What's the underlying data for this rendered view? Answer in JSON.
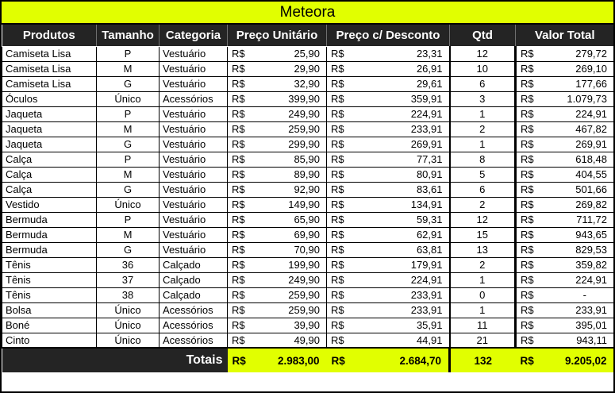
{
  "title": "Meteora",
  "currency": "R$",
  "colors": {
    "accent_yellow": "#e1ff00",
    "header_bg": "#242424",
    "grid": "#000000"
  },
  "table": {
    "headers": [
      "Produtos",
      "Tamanho",
      "Categoria",
      "Preço Unitário",
      "Preço c/ Desconto",
      "Qtd",
      "Valor Total"
    ],
    "rows": [
      {
        "produto": "Camiseta Lisa",
        "tamanho": "P",
        "categoria": "Vestuário",
        "preco_unitario": "25,90",
        "preco_desconto": "23,31",
        "qtd": "12",
        "valor_total": "279,72"
      },
      {
        "produto": "Camiseta Lisa",
        "tamanho": "M",
        "categoria": "Vestuário",
        "preco_unitario": "29,90",
        "preco_desconto": "26,91",
        "qtd": "10",
        "valor_total": "269,10"
      },
      {
        "produto": "Camiseta Lisa",
        "tamanho": "G",
        "categoria": "Vestuário",
        "preco_unitario": "32,90",
        "preco_desconto": "29,61",
        "qtd": "6",
        "valor_total": "177,66"
      },
      {
        "produto": "Óculos",
        "tamanho": "Único",
        "categoria": "Acessórios",
        "preco_unitario": "399,90",
        "preco_desconto": "359,91",
        "qtd": "3",
        "valor_total": "1.079,73"
      },
      {
        "produto": "Jaqueta",
        "tamanho": "P",
        "categoria": "Vestuário",
        "preco_unitario": "249,90",
        "preco_desconto": "224,91",
        "qtd": "1",
        "valor_total": "224,91"
      },
      {
        "produto": "Jaqueta",
        "tamanho": "M",
        "categoria": "Vestuário",
        "preco_unitario": "259,90",
        "preco_desconto": "233,91",
        "qtd": "2",
        "valor_total": "467,82"
      },
      {
        "produto": "Jaqueta",
        "tamanho": "G",
        "categoria": "Vestuário",
        "preco_unitario": "299,90",
        "preco_desconto": "269,91",
        "qtd": "1",
        "valor_total": "269,91"
      },
      {
        "produto": "Calça",
        "tamanho": "P",
        "categoria": "Vestuário",
        "preco_unitario": "85,90",
        "preco_desconto": "77,31",
        "qtd": "8",
        "valor_total": "618,48"
      },
      {
        "produto": "Calça",
        "tamanho": "M",
        "categoria": "Vestuário",
        "preco_unitario": "89,90",
        "preco_desconto": "80,91",
        "qtd": "5",
        "valor_total": "404,55"
      },
      {
        "produto": "Calça",
        "tamanho": "G",
        "categoria": "Vestuário",
        "preco_unitario": "92,90",
        "preco_desconto": "83,61",
        "qtd": "6",
        "valor_total": "501,66"
      },
      {
        "produto": "Vestido",
        "tamanho": "Único",
        "categoria": "Vestuário",
        "preco_unitario": "149,90",
        "preco_desconto": "134,91",
        "qtd": "2",
        "valor_total": "269,82"
      },
      {
        "produto": "Bermuda",
        "tamanho": "P",
        "categoria": "Vestuário",
        "preco_unitario": "65,90",
        "preco_desconto": "59,31",
        "qtd": "12",
        "valor_total": "711,72"
      },
      {
        "produto": "Bermuda",
        "tamanho": "M",
        "categoria": "Vestuário",
        "preco_unitario": "69,90",
        "preco_desconto": "62,91",
        "qtd": "15",
        "valor_total": "943,65"
      },
      {
        "produto": "Bermuda",
        "tamanho": "G",
        "categoria": "Vestuário",
        "preco_unitario": "70,90",
        "preco_desconto": "63,81",
        "qtd": "13",
        "valor_total": "829,53"
      },
      {
        "produto": "Tênis",
        "tamanho": "36",
        "categoria": "Calçado",
        "preco_unitario": "199,90",
        "preco_desconto": "179,91",
        "qtd": "2",
        "valor_total": "359,82"
      },
      {
        "produto": "Tênis",
        "tamanho": "37",
        "categoria": "Calçado",
        "preco_unitario": "249,90",
        "preco_desconto": "224,91",
        "qtd": "1",
        "valor_total": "224,91"
      },
      {
        "produto": "Tênis",
        "tamanho": "38",
        "categoria": "Calçado",
        "preco_unitario": "259,90",
        "preco_desconto": "233,91",
        "qtd": "0",
        "valor_total": "-"
      },
      {
        "produto": "Bolsa",
        "tamanho": "Único",
        "categoria": "Acessórios",
        "preco_unitario": "259,90",
        "preco_desconto": "233,91",
        "qtd": "1",
        "valor_total": "233,91"
      },
      {
        "produto": "Boné",
        "tamanho": "Único",
        "categoria": "Acessórios",
        "preco_unitario": "39,90",
        "preco_desconto": "35,91",
        "qtd": "11",
        "valor_total": "395,01"
      },
      {
        "produto": "Cinto",
        "tamanho": "Único",
        "categoria": "Acessórios",
        "preco_unitario": "49,90",
        "preco_desconto": "44,91",
        "qtd": "21",
        "valor_total": "943,11"
      }
    ],
    "totals": {
      "label": "Totais",
      "preco_unitario": "2.983,00",
      "preco_desconto": "2.684,70",
      "qtd": "132",
      "valor_total": "9.205,02"
    }
  }
}
